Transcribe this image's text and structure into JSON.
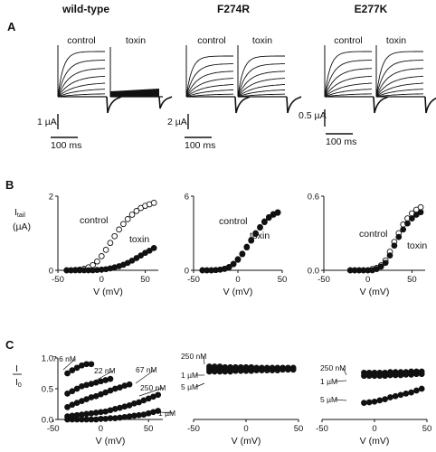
{
  "headers": [
    "wild-type",
    "F274R",
    "E277K"
  ],
  "panel_labels": [
    "A",
    "B",
    "C"
  ],
  "panel_a": {
    "condition_labels": [
      "control",
      "toxin"
    ],
    "scalebars": [
      {
        "current": "1 µA",
        "time": "100 ms"
      },
      {
        "current": "2 µA",
        "time": "100 ms"
      },
      {
        "current": "0.5 µA",
        "time": "100 ms"
      }
    ]
  },
  "chart_data": [
    {
      "type": "scatter",
      "panel": "B",
      "construct": "wild-type",
      "ylabel_main": "I",
      "ylabel_sub": "tail",
      "ylabel_unit": "(µA)",
      "xlabel": "V (mV)",
      "xlim": [
        -50,
        65
      ],
      "ylim": [
        0,
        2
      ],
      "xticks": [
        "-50",
        "0",
        "50"
      ],
      "yticks": [
        "0",
        "2"
      ],
      "series": [
        {
          "name": "control",
          "marker": "open",
          "x": [
            -40,
            -35,
            -30,
            -25,
            -20,
            -15,
            -10,
            -5,
            0,
            5,
            10,
            15,
            20,
            25,
            30,
            35,
            40,
            45,
            50,
            55,
            60
          ],
          "y": [
            0.0,
            0.0,
            0.01,
            0.02,
            0.04,
            0.08,
            0.14,
            0.24,
            0.38,
            0.55,
            0.74,
            0.92,
            1.1,
            1.25,
            1.38,
            1.5,
            1.6,
            1.68,
            1.74,
            1.78,
            1.82
          ]
        },
        {
          "name": "toxin",
          "marker": "filled",
          "x": [
            -40,
            -35,
            -30,
            -25,
            -20,
            -15,
            -10,
            -5,
            0,
            5,
            10,
            15,
            20,
            25,
            30,
            35,
            40,
            45,
            50,
            55,
            60
          ],
          "y": [
            0.0,
            0.0,
            0.0,
            0.0,
            0.0,
            0.0,
            0.0,
            0.01,
            0.02,
            0.03,
            0.05,
            0.08,
            0.11,
            0.15,
            0.2,
            0.26,
            0.33,
            0.4,
            0.47,
            0.53,
            0.6
          ]
        }
      ]
    },
    {
      "type": "scatter",
      "panel": "B",
      "construct": "F274R",
      "xlabel": "V (mV)",
      "xlim": [
        -50,
        50
      ],
      "ylim": [
        0,
        6
      ],
      "xticks": [
        "-50",
        "0",
        "50"
      ],
      "yticks": [
        "0",
        "6"
      ],
      "series": [
        {
          "name": "control",
          "marker": "open",
          "x": [
            -40,
            -35,
            -30,
            -25,
            -20,
            -15,
            -10,
            -5,
            0,
            5,
            10,
            15,
            20,
            25,
            30,
            35,
            40,
            45
          ],
          "y": [
            0.0,
            0.0,
            0.0,
            0.02,
            0.05,
            0.12,
            0.25,
            0.5,
            0.85,
            1.3,
            1.85,
            2.4,
            2.95,
            3.45,
            3.9,
            4.25,
            4.5,
            4.65
          ]
        },
        {
          "name": "toxin",
          "marker": "filled",
          "x": [
            -40,
            -35,
            -30,
            -25,
            -20,
            -15,
            -10,
            -5,
            0,
            5,
            10,
            15,
            20,
            25,
            30,
            35,
            40,
            45
          ],
          "y": [
            0.0,
            0.0,
            0.0,
            0.02,
            0.05,
            0.12,
            0.26,
            0.52,
            0.9,
            1.35,
            1.9,
            2.45,
            3.0,
            3.5,
            3.95,
            4.3,
            4.55,
            4.7
          ]
        }
      ]
    },
    {
      "type": "scatter",
      "panel": "B",
      "construct": "E277K",
      "xlabel": "V (mV)",
      "xlim": [
        -50,
        65
      ],
      "ylim": [
        0,
        0.6
      ],
      "xticks": [
        "-50",
        "0",
        "50"
      ],
      "yticks": [
        "0.0",
        "0.6"
      ],
      "series": [
        {
          "name": "control",
          "marker": "open",
          "x": [
            -20,
            -15,
            -10,
            -5,
            0,
            5,
            10,
            15,
            20,
            25,
            30,
            35,
            40,
            45,
            50,
            55,
            60
          ],
          "y": [
            0.0,
            0.0,
            0.0,
            0.0,
            0.0,
            0.01,
            0.02,
            0.04,
            0.08,
            0.15,
            0.23,
            0.3,
            0.37,
            0.42,
            0.46,
            0.49,
            0.51
          ]
        },
        {
          "name": "toxin",
          "marker": "filled",
          "x": [
            -20,
            -15,
            -10,
            -5,
            0,
            5,
            10,
            15,
            20,
            25,
            30,
            35,
            40,
            45,
            50,
            55,
            60
          ],
          "y": [
            0.0,
            0.0,
            0.0,
            0.0,
            0.0,
            0.0,
            0.01,
            0.03,
            0.06,
            0.12,
            0.2,
            0.27,
            0.33,
            0.38,
            0.42,
            0.45,
            0.47
          ]
        }
      ]
    },
    {
      "type": "scatter",
      "panel": "C",
      "construct": "wild-type",
      "ylabel_main": "I",
      "ylabel_sub": "0",
      "xlabel": "V (mV)",
      "xlim": [
        -45,
        65
      ],
      "ylim": [
        0,
        1
      ],
      "xticks": [
        "-50",
        "0",
        "50"
      ],
      "yticks": [
        "0.0",
        "0.5",
        "1.0"
      ],
      "series": [
        {
          "name": "7.6 nM",
          "x": [
            -35,
            -30,
            -25,
            -20,
            -15,
            -10
          ],
          "y": [
            0.75,
            0.8,
            0.84,
            0.88,
            0.9,
            0.9
          ]
        },
        {
          "name": "22 nM",
          "x": [
            -35,
            -30,
            -25,
            -20,
            -15,
            -10,
            -5,
            0,
            5,
            10
          ],
          "y": [
            0.42,
            0.46,
            0.5,
            0.54,
            0.56,
            0.58,
            0.6,
            0.62,
            0.64,
            0.66
          ]
        },
        {
          "name": "67 nM",
          "x": [
            -35,
            -30,
            -25,
            -20,
            -15,
            -10,
            -5,
            0,
            5,
            10,
            15,
            20,
            25,
            30
          ],
          "y": [
            0.2,
            0.24,
            0.27,
            0.3,
            0.33,
            0.36,
            0.38,
            0.41,
            0.44,
            0.47,
            0.5,
            0.52,
            0.55,
            0.57
          ]
        },
        {
          "name": "250 nM",
          "x": [
            -35,
            -30,
            -25,
            -20,
            -15,
            -10,
            -5,
            0,
            5,
            10,
            15,
            20,
            25,
            30,
            35,
            40,
            45,
            50,
            55,
            60
          ],
          "y": [
            0.05,
            0.06,
            0.07,
            0.08,
            0.09,
            0.1,
            0.11,
            0.12,
            0.13,
            0.15,
            0.17,
            0.19,
            0.21,
            0.23,
            0.26,
            0.28,
            0.31,
            0.34,
            0.37,
            0.4
          ]
        },
        {
          "name": "1 µM",
          "x": [
            -35,
            -30,
            -25,
            -20,
            -15,
            -10,
            -5,
            0,
            5,
            10,
            15,
            20,
            25,
            30,
            35,
            40,
            45,
            50,
            55,
            60
          ],
          "y": [
            0.0,
            0.0,
            0.0,
            0.0,
            0.0,
            0.0,
            0.0,
            0.01,
            0.01,
            0.02,
            0.02,
            0.03,
            0.04,
            0.05,
            0.06,
            0.07,
            0.08,
            0.1,
            0.12,
            0.14
          ]
        }
      ]
    },
    {
      "type": "scatter",
      "panel": "C",
      "construct": "F274R",
      "xlabel": "V (mV)",
      "xlim": [
        -50,
        50
      ],
      "ylim": [
        0,
        1
      ],
      "xticks": [
        "-50",
        "0",
        "50"
      ],
      "series": [
        {
          "name": "250 nM",
          "x": [
            -35,
            -30,
            -25,
            -20,
            -15,
            -10,
            -5,
            0,
            5,
            10,
            15,
            20,
            25,
            30,
            35,
            40,
            45
          ],
          "y": [
            0.86,
            0.86,
            0.86,
            0.85,
            0.85,
            0.85,
            0.85,
            0.85,
            0.85,
            0.84,
            0.84,
            0.84,
            0.84,
            0.84,
            0.84,
            0.84,
            0.84
          ]
        },
        {
          "name": "1 µM",
          "x": [
            -35,
            -30,
            -25,
            -20,
            -15,
            -10,
            -5,
            0,
            5,
            10,
            15,
            20,
            25,
            30,
            35,
            40,
            45
          ],
          "y": [
            0.82,
            0.82,
            0.82,
            0.82,
            0.82,
            0.82,
            0.82,
            0.82,
            0.82,
            0.82,
            0.82,
            0.82,
            0.82,
            0.82,
            0.82,
            0.82,
            0.82
          ]
        },
        {
          "name": "5 µM",
          "x": [
            -35,
            -30,
            -25,
            -20,
            -15,
            -10,
            -5,
            0,
            5,
            10,
            15,
            20,
            25,
            30,
            35,
            40,
            45
          ],
          "y": [
            0.78,
            0.78,
            0.78,
            0.78,
            0.78,
            0.79,
            0.79,
            0.79,
            0.79,
            0.8,
            0.8,
            0.8,
            0.8,
            0.8,
            0.81,
            0.81,
            0.81
          ]
        }
      ]
    },
    {
      "type": "scatter",
      "panel": "C",
      "construct": "E277K",
      "xlabel": "V (mV)",
      "xlim": [
        -50,
        50
      ],
      "ylim": [
        0,
        1
      ],
      "xticks": [
        "-50",
        "0",
        "50"
      ],
      "series": [
        {
          "name": "250 nM",
          "x": [
            -10,
            -5,
            0,
            5,
            10,
            15,
            20,
            25,
            30,
            35,
            40,
            45
          ],
          "y": [
            0.76,
            0.76,
            0.76,
            0.76,
            0.76,
            0.77,
            0.77,
            0.77,
            0.77,
            0.78,
            0.78,
            0.78
          ]
        },
        {
          "name": "1 µM",
          "x": [
            -10,
            -5,
            0,
            5,
            10,
            15,
            20,
            25,
            30,
            35,
            40,
            45
          ],
          "y": [
            0.71,
            0.71,
            0.71,
            0.71,
            0.71,
            0.72,
            0.72,
            0.72,
            0.73,
            0.73,
            0.74,
            0.74
          ]
        },
        {
          "name": "5 µM",
          "x": [
            -10,
            -5,
            0,
            5,
            10,
            15,
            20,
            25,
            30,
            35,
            40,
            45
          ],
          "y": [
            0.27,
            0.28,
            0.29,
            0.31,
            0.33,
            0.36,
            0.38,
            0.4,
            0.42,
            0.44,
            0.47,
            0.5
          ]
        }
      ]
    }
  ]
}
